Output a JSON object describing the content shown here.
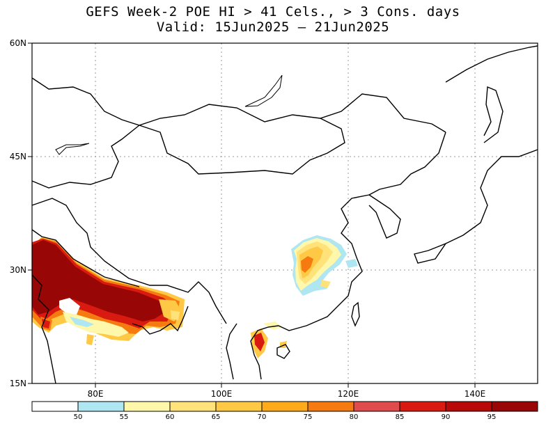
{
  "title": {
    "line1": "GEFS Week-2 POE HI > 41 Cels., > 3 Cons. days",
    "line2": "Valid: 15Jun2025 – 21Jun2025"
  },
  "axes": {
    "lat_labels": [
      "60N",
      "45N",
      "30N",
      "15N"
    ],
    "lon_labels": [
      "80E",
      "100E",
      "120E",
      "140E"
    ]
  },
  "colorbar": {
    "ticks": [
      "50",
      "55",
      "60",
      "65",
      "70",
      "75",
      "80",
      "85",
      "90",
      "95"
    ],
    "colors": [
      "#ffffff",
      "#aee6f2",
      "#fff7aa",
      "#ffe27a",
      "#ffc845",
      "#ffaa1a",
      "#f57a10",
      "#e04c4c",
      "#d81a10",
      "#b80808",
      "#980606"
    ]
  },
  "map": {
    "region": "South/East Asia",
    "lon_range": [
      70,
      150
    ],
    "lat_range": [
      15,
      60
    ],
    "hotspots": [
      "North India / Pakistan plains (90-95+)",
      "Bangladesh / Ganges delta",
      "East-central China (Hubei/Henan)",
      "Northern Vietnam / Laos"
    ]
  }
}
